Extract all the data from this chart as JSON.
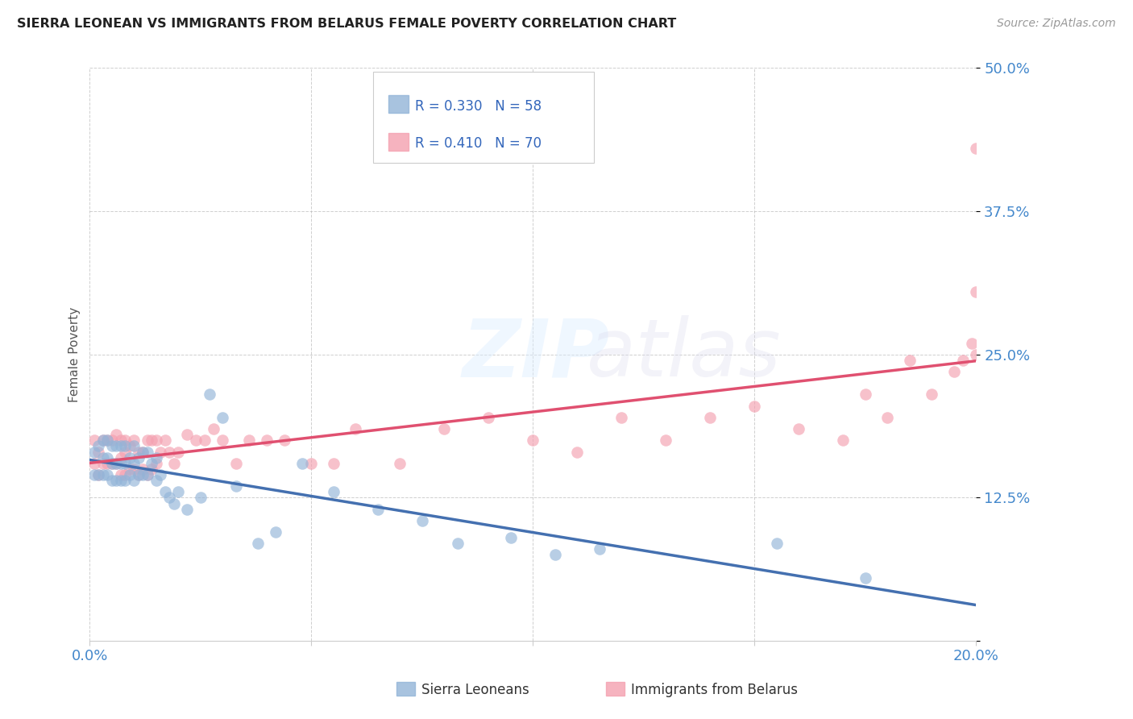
{
  "title": "SIERRA LEONEAN VS IMMIGRANTS FROM BELARUS FEMALE POVERTY CORRELATION CHART",
  "source": "Source: ZipAtlas.com",
  "ylabel": "Female Poverty",
  "xlim": [
    0.0,
    0.2
  ],
  "ylim": [
    0.0,
    0.5
  ],
  "xticks": [
    0.0,
    0.05,
    0.1,
    0.15,
    0.2
  ],
  "yticks": [
    0.0,
    0.125,
    0.25,
    0.375,
    0.5
  ],
  "xtick_labels": [
    "0.0%",
    "",
    "",
    "",
    "20.0%"
  ],
  "ytick_labels": [
    "",
    "12.5%",
    "25.0%",
    "37.5%",
    "50.0%"
  ],
  "sierra_R": 0.33,
  "sierra_N": 58,
  "belarus_R": 0.41,
  "belarus_N": 70,
  "sierra_color": "#92B4D8",
  "belarus_color": "#F4A0B0",
  "sierra_line_color": "#4470B0",
  "belarus_line_color": "#E05070",
  "background_color": "#FFFFFF",
  "grid_color": "#BBBBBB",
  "legend_label_sierra": "Sierra Leoneans",
  "legend_label_belarus": "Immigrants from Belarus",
  "sierra_x": [
    0.001,
    0.001,
    0.002,
    0.002,
    0.003,
    0.003,
    0.003,
    0.004,
    0.004,
    0.004,
    0.005,
    0.005,
    0.005,
    0.006,
    0.006,
    0.006,
    0.007,
    0.007,
    0.007,
    0.008,
    0.008,
    0.008,
    0.009,
    0.009,
    0.01,
    0.01,
    0.01,
    0.011,
    0.011,
    0.012,
    0.012,
    0.013,
    0.013,
    0.014,
    0.015,
    0.015,
    0.016,
    0.017,
    0.018,
    0.019,
    0.02,
    0.022,
    0.025,
    0.027,
    0.03,
    0.033,
    0.038,
    0.042,
    0.048,
    0.055,
    0.065,
    0.075,
    0.083,
    0.095,
    0.105,
    0.115,
    0.155,
    0.175
  ],
  "sierra_y": [
    0.145,
    0.165,
    0.145,
    0.17,
    0.145,
    0.16,
    0.175,
    0.145,
    0.16,
    0.175,
    0.14,
    0.155,
    0.17,
    0.14,
    0.155,
    0.17,
    0.14,
    0.155,
    0.17,
    0.14,
    0.155,
    0.17,
    0.145,
    0.16,
    0.14,
    0.155,
    0.17,
    0.145,
    0.16,
    0.145,
    0.165,
    0.145,
    0.165,
    0.155,
    0.14,
    0.16,
    0.145,
    0.13,
    0.125,
    0.12,
    0.13,
    0.115,
    0.125,
    0.215,
    0.195,
    0.135,
    0.085,
    0.095,
    0.155,
    0.13,
    0.115,
    0.105,
    0.085,
    0.09,
    0.075,
    0.08,
    0.085,
    0.055
  ],
  "belarus_x": [
    0.001,
    0.001,
    0.002,
    0.002,
    0.003,
    0.003,
    0.004,
    0.004,
    0.005,
    0.005,
    0.006,
    0.006,
    0.007,
    0.007,
    0.007,
    0.008,
    0.008,
    0.008,
    0.009,
    0.009,
    0.01,
    0.01,
    0.011,
    0.011,
    0.012,
    0.012,
    0.013,
    0.013,
    0.014,
    0.014,
    0.015,
    0.015,
    0.016,
    0.017,
    0.018,
    0.019,
    0.02,
    0.022,
    0.024,
    0.026,
    0.028,
    0.03,
    0.033,
    0.036,
    0.04,
    0.044,
    0.05,
    0.055,
    0.06,
    0.07,
    0.08,
    0.09,
    0.1,
    0.11,
    0.12,
    0.13,
    0.14,
    0.15,
    0.16,
    0.17,
    0.175,
    0.18,
    0.185,
    0.19,
    0.195,
    0.197,
    0.199,
    0.2,
    0.2,
    0.2
  ],
  "belarus_y": [
    0.155,
    0.175,
    0.145,
    0.165,
    0.155,
    0.175,
    0.155,
    0.175,
    0.155,
    0.175,
    0.155,
    0.18,
    0.145,
    0.16,
    0.175,
    0.145,
    0.165,
    0.175,
    0.15,
    0.17,
    0.15,
    0.175,
    0.145,
    0.165,
    0.15,
    0.165,
    0.145,
    0.175,
    0.15,
    0.175,
    0.155,
    0.175,
    0.165,
    0.175,
    0.165,
    0.155,
    0.165,
    0.18,
    0.175,
    0.175,
    0.185,
    0.175,
    0.155,
    0.175,
    0.175,
    0.175,
    0.155,
    0.155,
    0.185,
    0.155,
    0.185,
    0.195,
    0.175,
    0.165,
    0.195,
    0.175,
    0.195,
    0.205,
    0.185,
    0.175,
    0.215,
    0.195,
    0.245,
    0.215,
    0.235,
    0.245,
    0.26,
    0.305,
    0.25,
    0.43
  ]
}
